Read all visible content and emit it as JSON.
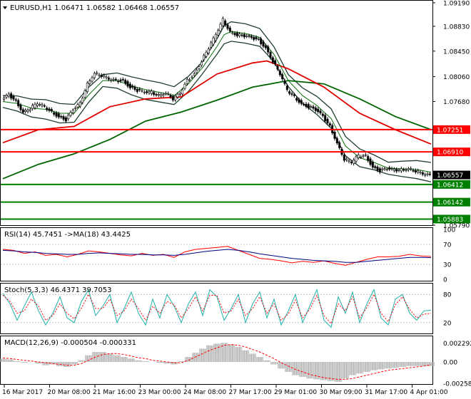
{
  "header": {
    "symbol_line": "EURUSD,H1  1.06471 1.06582 1.06468 1.06557",
    "rsi_label": "RSI(14) 45.7451 ->MA(18) 43.4425",
    "stoch_label": "Stoch(5,3,3) 46.4371 39.7053",
    "macd_label": "MACD(12,26,9) -0.000504 -0.000331"
  },
  "colors": {
    "background": "#ffffff",
    "candles": "#000000",
    "bollinger": "#1f3d2e",
    "ma_fast": "#0a6e0a",
    "ma_red": "#e00000",
    "ma_long": "#006400",
    "resistance": "#ff0000",
    "support": "#008000",
    "rsi_line": "#ff0000",
    "rsi_ma": "#000080",
    "stoch_main": "#20b2aa",
    "stoch_signal": "#ff0000",
    "macd_hist": "#b0b0b0",
    "macd_signal": "#ff0000"
  },
  "chart_data": [
    {
      "type": "line",
      "name": "main",
      "ylim": [
        1.0579,
        1.0921
      ],
      "ytick_labels": [
        "1.09190",
        "1.08830",
        "1.08450",
        "1.08060",
        "1.07680",
        "1.05790"
      ],
      "ytick_values": [
        1.0919,
        1.0883,
        1.0845,
        1.0806,
        1.0768,
        1.0579
      ],
      "x_labels": [
        "16 Mar 2017",
        "20 Mar 08:00",
        "21 Mar 16:00",
        "23 Mar 00:00",
        "24 Mar 08:00",
        "27 Mar 17:00",
        "29 Mar 01:00",
        "30 Mar 09:00",
        "31 Mar 17:00",
        "4 Apr 01:00"
      ],
      "level_lines": [
        {
          "label": "1.07251",
          "value": 1.07251,
          "kind": "resistance"
        },
        {
          "label": "1.06910",
          "value": 1.0691,
          "kind": "resistance"
        },
        {
          "label": "1.06557",
          "value": 1.06557,
          "kind": "price"
        },
        {
          "label": "1.06412",
          "value": 1.06412,
          "kind": "support"
        },
        {
          "label": "1.06142",
          "value": 1.06142,
          "kind": "support"
        },
        {
          "label": "1.05883",
          "value": 1.05883,
          "kind": "support"
        }
      ],
      "close_series": {
        "x": [
          0,
          10,
          20,
          30,
          40,
          50,
          60,
          70,
          80,
          90,
          100,
          110,
          120,
          130,
          140,
          150,
          160,
          170,
          180,
          190,
          200,
          210,
          220,
          230,
          240,
          250,
          260,
          270,
          280,
          290,
          300,
          310,
          320,
          330,
          340,
          350,
          360,
          370,
          380,
          390,
          400,
          410,
          420,
          430,
          440,
          450,
          460,
          470,
          480,
          490,
          500,
          510,
          520,
          530,
          540,
          550,
          560,
          570,
          580,
          590,
          600
        ],
        "y": [
          1.077,
          1.0778,
          1.0768,
          1.0752,
          1.0758,
          1.0765,
          1.076,
          1.0752,
          1.0745,
          1.074,
          1.0755,
          1.0765,
          1.0795,
          1.0812,
          1.0808,
          1.0802,
          1.08,
          1.08,
          1.079,
          1.0785,
          1.0782,
          1.0782,
          1.0778,
          1.0782,
          1.0772,
          1.078,
          1.08,
          1.081,
          1.083,
          1.085,
          1.087,
          1.0893,
          1.0875,
          1.087,
          1.0868,
          1.0865,
          1.0862,
          1.085,
          1.083,
          1.081,
          1.0785,
          1.0775,
          1.0765,
          1.076,
          1.0755,
          1.0745,
          1.073,
          1.0705,
          1.068,
          1.0675,
          1.0685,
          1.0685,
          1.0668,
          1.0662,
          1.0665,
          1.0663,
          1.0664,
          1.0666,
          1.0662,
          1.0657,
          1.0655
        ]
      },
      "ma_red_series": {
        "x": [
          0,
          50,
          100,
          150,
          200,
          250,
          300,
          350,
          370,
          400,
          450,
          500,
          550,
          600
        ],
        "y": [
          1.0705,
          1.0725,
          1.073,
          1.076,
          1.0772,
          1.0775,
          1.081,
          1.0827,
          1.083,
          1.0818,
          1.079,
          1.075,
          1.0725,
          1.0703
        ]
      },
      "ma_long_series": {
        "x": [
          0,
          50,
          100,
          150,
          200,
          250,
          300,
          350,
          400,
          450,
          500,
          550,
          600
        ],
        "y": [
          1.065,
          1.0672,
          1.0688,
          1.071,
          1.0738,
          1.0752,
          1.077,
          1.079,
          1.08,
          1.0795,
          1.0772,
          1.0745,
          1.0725
        ]
      },
      "ma_fast_series": {
        "x": [
          0,
          20,
          40,
          60,
          80,
          100,
          120,
          140,
          160,
          180,
          200,
          220,
          240,
          260,
          280,
          300,
          310,
          320,
          340,
          360,
          380,
          400,
          420,
          440,
          460,
          480,
          500,
          520,
          540,
          560,
          580,
          600
        ],
        "y": [
          1.0768,
          1.0765,
          1.0758,
          1.0756,
          1.075,
          1.075,
          1.0778,
          1.08,
          1.08,
          1.0792,
          1.0786,
          1.0782,
          1.0777,
          1.0795,
          1.082,
          1.0852,
          1.087,
          1.0875,
          1.0872,
          1.0866,
          1.084,
          1.08,
          1.0777,
          1.0762,
          1.0742,
          1.07,
          1.0682,
          1.0675,
          1.0666,
          1.0665,
          1.0664,
          1.066
        ]
      }
    },
    {
      "type": "line",
      "name": "rsi",
      "ylim": [
        0,
        100
      ],
      "ytick_labels": [
        "100",
        "70",
        "30",
        "0"
      ],
      "ytick_values": [
        100,
        70,
        30,
        0
      ],
      "x": [
        0,
        15,
        30,
        45,
        60,
        75,
        90,
        105,
        120,
        135,
        150,
        165,
        180,
        195,
        210,
        225,
        240,
        255,
        270,
        285,
        300,
        315,
        330,
        345,
        360,
        375,
        390,
        405,
        420,
        435,
        450,
        465,
        480,
        495,
        510,
        525,
        540,
        555,
        570,
        585,
        600
      ],
      "rsi": [
        60,
        58,
        52,
        55,
        48,
        50,
        45,
        50,
        57,
        55,
        52,
        49,
        47,
        52,
        48,
        50,
        44,
        55,
        60,
        62,
        64,
        66,
        58,
        50,
        42,
        40,
        37,
        33,
        36,
        34,
        37,
        32,
        28,
        34,
        40,
        45,
        45,
        46,
        50,
        47,
        45.7
      ],
      "rsi_ma": [
        58,
        57,
        55,
        54,
        52,
        51,
        50,
        50,
        52,
        53,
        52,
        51,
        50,
        50,
        49,
        49,
        48,
        50,
        53,
        56,
        58,
        60,
        58,
        55,
        51,
        48,
        45,
        42,
        40,
        38,
        37,
        36,
        34,
        34,
        36,
        38,
        40,
        42,
        44,
        44,
        43.4
      ]
    },
    {
      "type": "line",
      "name": "stochastic",
      "ylim": [
        0,
        100
      ],
      "ytick_labels": [
        "80",
        "20"
      ],
      "ytick_values": [
        80,
        20
      ],
      "x": [
        0,
        10,
        20,
        30,
        40,
        50,
        60,
        70,
        80,
        90,
        100,
        110,
        120,
        130,
        140,
        150,
        160,
        170,
        180,
        190,
        200,
        210,
        220,
        230,
        240,
        250,
        260,
        270,
        280,
        290,
        300,
        310,
        320,
        330,
        340,
        350,
        360,
        370,
        380,
        390,
        400,
        410,
        420,
        430,
        440,
        450,
        460,
        470,
        480,
        490,
        500,
        510,
        520,
        530,
        540,
        550,
        560,
        570,
        580,
        590,
        600
      ],
      "main": [
        82,
        60,
        25,
        55,
        85,
        45,
        15,
        40,
        75,
        30,
        20,
        65,
        90,
        35,
        55,
        80,
        20,
        50,
        85,
        40,
        15,
        70,
        30,
        80,
        55,
        20,
        60,
        85,
        35,
        90,
        75,
        25,
        50,
        80,
        20,
        60,
        85,
        30,
        70,
        15,
        45,
        80,
        20,
        55,
        90,
        25,
        10,
        75,
        40,
        85,
        20,
        60,
        90,
        30,
        15,
        70,
        80,
        40,
        25,
        45,
        46.4
      ],
      "signal": [
        78,
        65,
        40,
        45,
        70,
        55,
        25,
        35,
        60,
        40,
        28,
        50,
        80,
        50,
        50,
        70,
        35,
        45,
        70,
        50,
        25,
        55,
        40,
        65,
        58,
        30,
        50,
        75,
        45,
        78,
        78,
        40,
        45,
        70,
        35,
        50,
        75,
        40,
        60,
        25,
        38,
        68,
        30,
        48,
        78,
        35,
        18,
        60,
        45,
        75,
        30,
        52,
        80,
        40,
        22,
        58,
        75,
        48,
        30,
        38,
        39.7
      ]
    },
    {
      "type": "bar",
      "name": "macd",
      "ylim": [
        -0.00258,
        0.00292
      ],
      "ytick_labels": [
        "0.002292",
        "0.00",
        "-0.002586"
      ],
      "ytick_values": [
        0.002292,
        0.0,
        -0.002586
      ],
      "x": [
        0,
        10,
        20,
        30,
        40,
        50,
        60,
        70,
        80,
        90,
        100,
        110,
        120,
        130,
        140,
        150,
        160,
        170,
        180,
        190,
        200,
        210,
        220,
        230,
        240,
        250,
        260,
        270,
        280,
        290,
        300,
        310,
        320,
        330,
        340,
        350,
        360,
        370,
        380,
        390,
        400,
        410,
        420,
        430,
        440,
        450,
        460,
        470,
        480,
        490,
        500,
        510,
        520,
        530,
        540,
        550,
        560,
        570,
        580,
        590,
        600
      ],
      "macd": [
        0.0004,
        0.0003,
        0.0001,
        -0.0001,
        0.0,
        -0.0002,
        -0.0004,
        -0.0003,
        -0.0005,
        -0.0006,
        -0.0003,
        0.0002,
        0.0008,
        0.0012,
        0.0012,
        0.001,
        0.0008,
        0.0006,
        0.0004,
        0.0002,
        0.0001,
        0.0,
        -0.0001,
        -0.0002,
        -0.0003,
        0.0001,
        0.0006,
        0.0011,
        0.0016,
        0.002,
        0.0022,
        0.0023,
        0.0021,
        0.0018,
        0.0014,
        0.001,
        0.0006,
        0.0002,
        -0.0003,
        -0.0008,
        -0.0012,
        -0.0016,
        -0.0018,
        -0.002,
        -0.0021,
        -0.0022,
        -0.0023,
        -0.0024,
        -0.002,
        -0.0016,
        -0.0014,
        -0.0012,
        -0.001,
        -0.0009,
        -0.0008,
        -0.0007,
        -0.0006,
        -0.0005,
        -0.0005,
        -0.0005,
        -0.000504
      ],
      "signal": [
        0.0005,
        0.0004,
        0.0003,
        0.0002,
        0.0001,
        0.0,
        -0.0001,
        -0.0002,
        -0.0003,
        -0.0004,
        -0.0004,
        -0.0002,
        0.0002,
        0.0006,
        0.0009,
        0.001,
        0.001,
        0.0009,
        0.0007,
        0.0005,
        0.0004,
        0.0002,
        0.0001,
        0.0,
        -0.0001,
        -0.0001,
        0.0002,
        0.0006,
        0.001,
        0.0014,
        0.0017,
        0.002,
        0.0021,
        0.002,
        0.0018,
        0.0015,
        0.0012,
        0.0008,
        0.0004,
        -0.0001,
        -0.0005,
        -0.0009,
        -0.0012,
        -0.0015,
        -0.0017,
        -0.0019,
        -0.002,
        -0.0021,
        -0.0021,
        -0.002,
        -0.0018,
        -0.0016,
        -0.0014,
        -0.0012,
        -0.001,
        -0.0009,
        -0.0008,
        -0.0007,
        -0.0006,
        -0.0005,
        -0.000331
      ]
    }
  ]
}
